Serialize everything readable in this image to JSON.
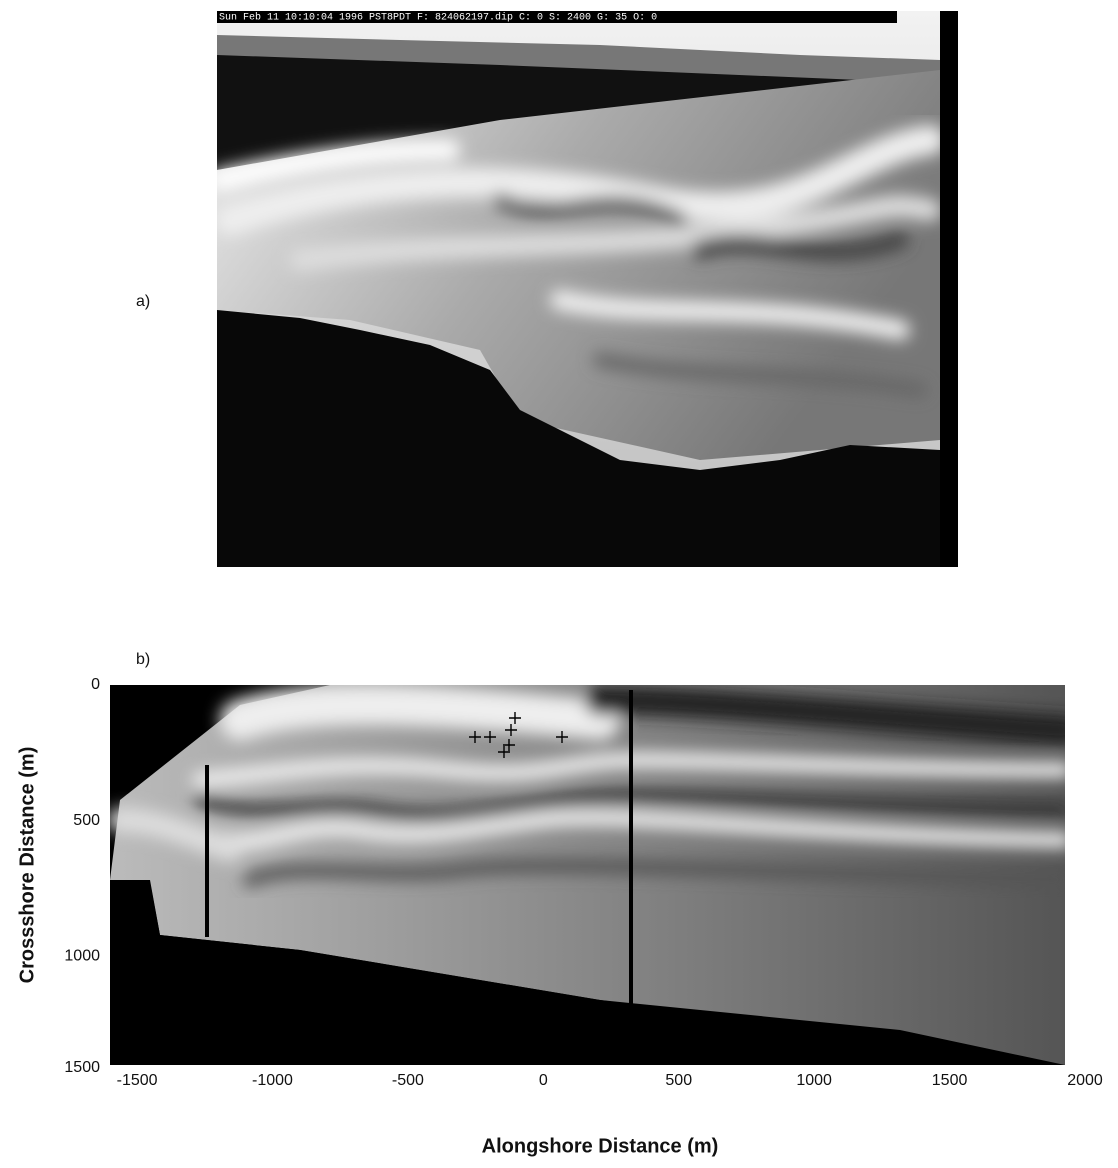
{
  "figure": {
    "panel_a": {
      "label": "a)",
      "caption_bar": "Sun Feb 11 10:10:04 1996 PST8PDT F: 824062197.dip C: 0 S: 2400 G: 35 O: 0"
    },
    "panel_b": {
      "label": "b)",
      "xlabel": "Alongshore Distance (m)",
      "ylabel": "Crossshore Distance (m)",
      "xlim": [
        -1600,
        2000
      ],
      "xticks": [
        -1500,
        -1000,
        -500,
        0,
        500,
        1000,
        1500,
        2000
      ],
      "ylim": [
        0,
        1500
      ],
      "yticks": [
        0,
        500,
        1000,
        1500
      ]
    }
  }
}
